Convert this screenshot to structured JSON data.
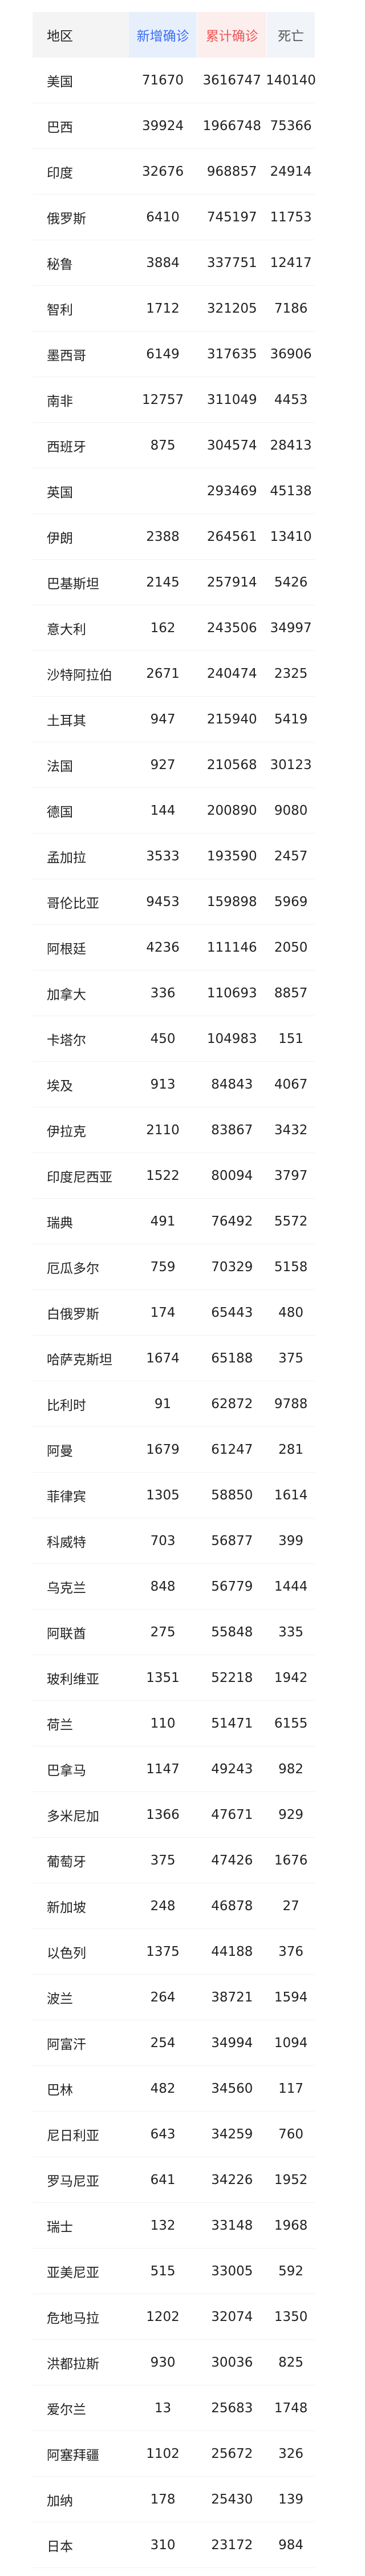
{
  "header": {
    "region": "地区",
    "new": "新增确诊",
    "total": "累计确诊",
    "deaths": "死亡"
  },
  "colors": {
    "new": "#3a6ff5",
    "total": "#f05656",
    "deaths": "#555555"
  },
  "rows": [
    {
      "region": "美国",
      "new": "71670",
      "total": "3616747",
      "deaths": "140140"
    },
    {
      "region": "巴西",
      "new": "39924",
      "total": "1966748",
      "deaths": "75366"
    },
    {
      "region": "印度",
      "new": "32676",
      "total": "968857",
      "deaths": "24914"
    },
    {
      "region": "俄罗斯",
      "new": "6410",
      "total": "745197",
      "deaths": "11753"
    },
    {
      "region": "秘鲁",
      "new": "3884",
      "total": "337751",
      "deaths": "12417"
    },
    {
      "region": "智利",
      "new": "1712",
      "total": "321205",
      "deaths": "7186"
    },
    {
      "region": "墨西哥",
      "new": "6149",
      "total": "317635",
      "deaths": "36906"
    },
    {
      "region": "南非",
      "new": "12757",
      "total": "311049",
      "deaths": "4453"
    },
    {
      "region": "西班牙",
      "new": "875",
      "total": "304574",
      "deaths": "28413"
    },
    {
      "region": "英国",
      "new": "",
      "total": "293469",
      "deaths": "45138"
    },
    {
      "region": "伊朗",
      "new": "2388",
      "total": "264561",
      "deaths": "13410"
    },
    {
      "region": "巴基斯坦",
      "new": "2145",
      "total": "257914",
      "deaths": "5426"
    },
    {
      "region": "意大利",
      "new": "162",
      "total": "243506",
      "deaths": "34997"
    },
    {
      "region": "沙特阿拉伯",
      "new": "2671",
      "total": "240474",
      "deaths": "2325"
    },
    {
      "region": "土耳其",
      "new": "947",
      "total": "215940",
      "deaths": "5419"
    },
    {
      "region": "法国",
      "new": "927",
      "total": "210568",
      "deaths": "30123"
    },
    {
      "region": "德国",
      "new": "144",
      "total": "200890",
      "deaths": "9080"
    },
    {
      "region": "孟加拉",
      "new": "3533",
      "total": "193590",
      "deaths": "2457"
    },
    {
      "region": "哥伦比亚",
      "new": "9453",
      "total": "159898",
      "deaths": "5969"
    },
    {
      "region": "阿根廷",
      "new": "4236",
      "total": "111146",
      "deaths": "2050"
    },
    {
      "region": "加拿大",
      "new": "336",
      "total": "110693",
      "deaths": "8857"
    },
    {
      "region": "卡塔尔",
      "new": "450",
      "total": "104983",
      "deaths": "151"
    },
    {
      "region": "埃及",
      "new": "913",
      "total": "84843",
      "deaths": "4067"
    },
    {
      "region": "伊拉克",
      "new": "2110",
      "total": "83867",
      "deaths": "3432"
    },
    {
      "region": "印度尼西亚",
      "new": "1522",
      "total": "80094",
      "deaths": "3797"
    },
    {
      "region": "瑞典",
      "new": "491",
      "total": "76492",
      "deaths": "5572"
    },
    {
      "region": "厄瓜多尔",
      "new": "759",
      "total": "70329",
      "deaths": "5158"
    },
    {
      "region": "白俄罗斯",
      "new": "174",
      "total": "65443",
      "deaths": "480"
    },
    {
      "region": "哈萨克斯坦",
      "new": "1674",
      "total": "65188",
      "deaths": "375"
    },
    {
      "region": "比利时",
      "new": "91",
      "total": "62872",
      "deaths": "9788"
    },
    {
      "region": "阿曼",
      "new": "1679",
      "total": "61247",
      "deaths": "281"
    },
    {
      "region": "菲律宾",
      "new": "1305",
      "total": "58850",
      "deaths": "1614"
    },
    {
      "region": "科威特",
      "new": "703",
      "total": "56877",
      "deaths": "399"
    },
    {
      "region": "乌克兰",
      "new": "848",
      "total": "56779",
      "deaths": "1444"
    },
    {
      "region": "阿联酋",
      "new": "275",
      "total": "55848",
      "deaths": "335"
    },
    {
      "region": "玻利维亚",
      "new": "1351",
      "total": "52218",
      "deaths": "1942"
    },
    {
      "region": "荷兰",
      "new": "110",
      "total": "51471",
      "deaths": "6155"
    },
    {
      "region": "巴拿马",
      "new": "1147",
      "total": "49243",
      "deaths": "982"
    },
    {
      "region": "多米尼加",
      "new": "1366",
      "total": "47671",
      "deaths": "929"
    },
    {
      "region": "葡萄牙",
      "new": "375",
      "total": "47426",
      "deaths": "1676"
    },
    {
      "region": "新加坡",
      "new": "248",
      "total": "46878",
      "deaths": "27"
    },
    {
      "region": "以色列",
      "new": "1375",
      "total": "44188",
      "deaths": "376"
    },
    {
      "region": "波兰",
      "new": "264",
      "total": "38721",
      "deaths": "1594"
    },
    {
      "region": "阿富汗",
      "new": "254",
      "total": "34994",
      "deaths": "1094"
    },
    {
      "region": "巴林",
      "new": "482",
      "total": "34560",
      "deaths": "117"
    },
    {
      "region": "尼日利亚",
      "new": "643",
      "total": "34259",
      "deaths": "760"
    },
    {
      "region": "罗马尼亚",
      "new": "641",
      "total": "34226",
      "deaths": "1952"
    },
    {
      "region": "瑞士",
      "new": "132",
      "total": "33148",
      "deaths": "1968"
    },
    {
      "region": "亚美尼亚",
      "new": "515",
      "total": "33005",
      "deaths": "592"
    },
    {
      "region": "危地马拉",
      "new": "1202",
      "total": "32074",
      "deaths": "1350"
    },
    {
      "region": "洪都拉斯",
      "new": "930",
      "total": "30036",
      "deaths": "825"
    },
    {
      "region": "爱尔兰",
      "new": "13",
      "total": "25683",
      "deaths": "1748"
    },
    {
      "region": "阿塞拜疆",
      "new": "1102",
      "total": "25672",
      "deaths": "326"
    },
    {
      "region": "加纳",
      "new": "178",
      "total": "25430",
      "deaths": "139"
    },
    {
      "region": "日本",
      "new": "310",
      "total": "23172",
      "deaths": "984"
    }
  ]
}
